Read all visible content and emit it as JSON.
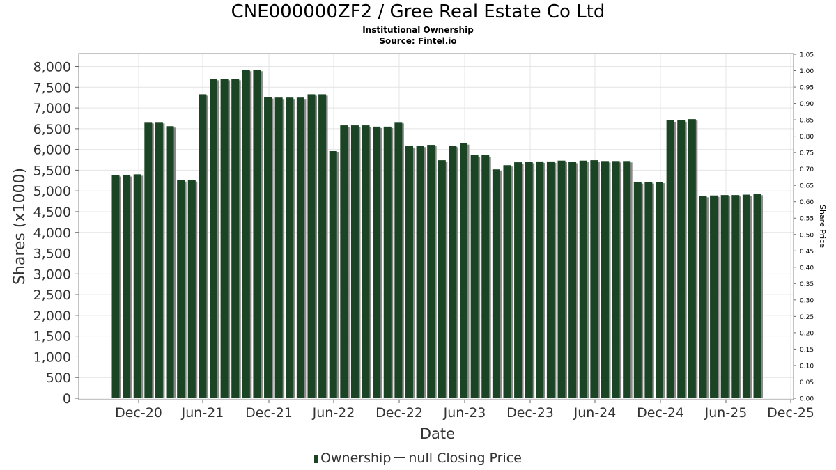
{
  "header": {
    "title": "CNE000000ZF2 / Gree Real Estate Co Ltd",
    "subtitle": "Institutional Ownership",
    "source": "Source: Fintel.io"
  },
  "legend": {
    "ownership": "Ownership",
    "price": "null Closing Price"
  },
  "colors": {
    "bar": "#1a4424",
    "bar_shadow": "#8a8a8a",
    "grid": "#e4e4e4",
    "axis": "#666666"
  },
  "chart_data": {
    "type": "bar",
    "xlabel": "Date",
    "ylabel": "Shares (x1000)",
    "y2label": "Share Price",
    "ylim": [
      0,
      8200
    ],
    "y2lim": [
      0,
      1.05
    ],
    "grid": true,
    "legend_position": "bottom",
    "yticks": [
      "0",
      "500",
      "1,000",
      "1,500",
      "2,000",
      "2,500",
      "3,000",
      "3,500",
      "4,000",
      "4,500",
      "5,000",
      "5,500",
      "6,000",
      "6,500",
      "7,000",
      "7,500",
      "8,000"
    ],
    "y2ticks": [
      "0.00",
      "0.05",
      "0.10",
      "0.15",
      "0.20",
      "0.25",
      "0.30",
      "0.35",
      "0.40",
      "0.45",
      "0.50",
      "0.55",
      "0.60",
      "0.65",
      "0.70",
      "0.75",
      "0.80",
      "0.85",
      "0.90",
      "0.95",
      "1.00",
      "1.05"
    ],
    "xticks": [
      "Dec-20",
      "Jun-21",
      "Dec-21",
      "Jun-22",
      "Dec-22",
      "Jun-23",
      "Dec-23",
      "Jun-24",
      "Dec-24",
      "Jun-25",
      "Dec-25"
    ],
    "series": [
      {
        "name": "Ownership",
        "values": [
          5380,
          5380,
          5400,
          6660,
          6660,
          6560,
          5260,
          5260,
          7330,
          7700,
          7700,
          7700,
          7920,
          7920,
          7260,
          7250,
          7250,
          7250,
          7330,
          7330,
          5960,
          6580,
          6580,
          6580,
          6550,
          6550,
          6660,
          6080,
          6090,
          6110,
          5740,
          6090,
          6150,
          5860,
          5860,
          5520,
          5620,
          5690,
          5700,
          5710,
          5710,
          5730,
          5700,
          5730,
          5740,
          5720,
          5720,
          5720,
          5210,
          5210,
          5220,
          6700,
          6700,
          6730,
          4880,
          4890,
          4900,
          4900,
          4910,
          4930
        ]
      }
    ]
  }
}
